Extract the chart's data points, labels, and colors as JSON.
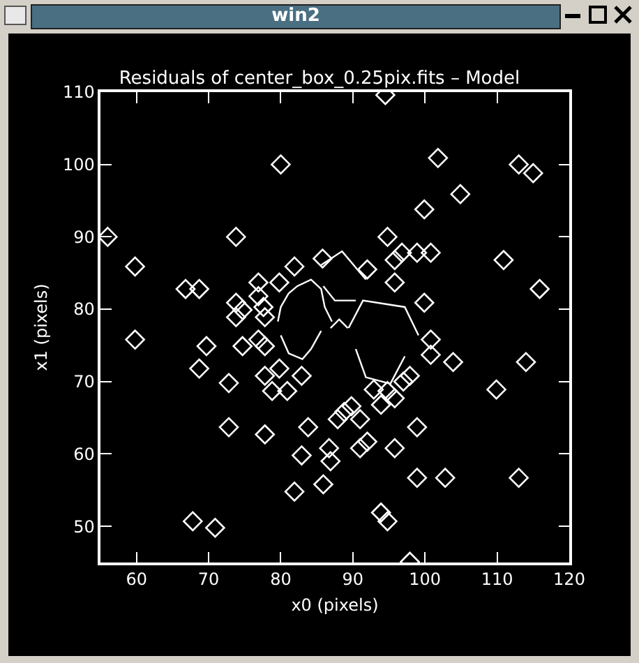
{
  "chart_data": {
    "type": "scatter",
    "title": "Residuals of center_box_0.25pix.fits – Model",
    "xlabel": "x0 (pixels)",
    "ylabel": "x1 (pixels)",
    "annotations": [
      "win2"
    ],
    "xlim": [
      55,
      120
    ],
    "ylim": [
      45,
      110
    ],
    "xticks": [
      60,
      70,
      80,
      90,
      100,
      110,
      120
    ],
    "yticks": [
      50,
      60,
      70,
      80,
      90,
      100,
      110
    ],
    "grid": false,
    "series": [
      {
        "type": "scatter",
        "marker": "diamond",
        "color": "#ffffff",
        "x": [
          94.5,
          80,
          101.8,
          113,
          115,
          104.9,
          99.9,
          56,
          73.8,
          59.8,
          66.8,
          68.7,
          85.8,
          81.9,
          76.9,
          79.8,
          76.9,
          77.6,
          73.8,
          74.7,
          73.8,
          77.8,
          94.8,
          96.8,
          95.8,
          98.9,
          100.8,
          110.9,
          115.9,
          99.9,
          95.8,
          92,
          59.8,
          69.7,
          68.7,
          74.7,
          76.9,
          77.8,
          72.8,
          77.8,
          78.8,
          80.9,
          79.8,
          82.9,
          72.8,
          77.8,
          83.8,
          82.9,
          85.9,
          81.9,
          67.8,
          70.9,
          86.7,
          86.9,
          100.8,
          100.8,
          103.9,
          114,
          109.9,
          98.9,
          95.8,
          92,
          91,
          91,
          98.9,
          102.8,
          113,
          93.9,
          94.8,
          97.9,
          93.9,
          95.8,
          94.8,
          97.9,
          97,
          92.9,
          87.9,
          88.8,
          89.8
        ],
        "values": [
          109.6,
          100,
          100.9,
          100,
          98.8,
          95.9,
          93.8,
          90,
          90,
          85.9,
          82.8,
          82.8,
          87,
          85.9,
          83.7,
          83.7,
          81.8,
          80.3,
          80.9,
          79.9,
          78.9,
          78.9,
          90,
          87.8,
          86.8,
          87.8,
          87.8,
          86.8,
          82.8,
          80.9,
          83.7,
          85.5,
          75.8,
          74.9,
          71.8,
          74.9,
          75.8,
          74.9,
          69.8,
          70.8,
          68.7,
          68.7,
          71.8,
          70.8,
          63.7,
          62.7,
          63.7,
          59.8,
          55.8,
          54.8,
          50.7,
          49.8,
          60.8,
          59,
          75.8,
          73.7,
          72.7,
          72.7,
          68.9,
          63.7,
          60.8,
          61.7,
          60.8,
          64.8,
          56.7,
          56.7,
          56.7,
          51.9,
          50.7,
          45.1,
          66.8,
          67.7,
          68.7,
          70.8,
          70,
          68.9,
          64.8,
          65.8,
          66.6
        ]
      },
      {
        "type": "line",
        "marker": "none",
        "color": "#ffffff",
        "x": [
          79.6,
          80,
          81.1,
          82.3,
          84.2,
          85.6,
          86.1,
          87.1
        ],
        "values": [
          78.3,
          80.3,
          82.2,
          83.2,
          84.1,
          82.8,
          80.3,
          78.3
        ]
      },
      {
        "type": "line",
        "marker": "none",
        "color": "#ffffff",
        "x": [
          80,
          81.1,
          83,
          84.2,
          85.6
        ],
        "values": [
          76.4,
          73.9,
          73.1,
          74.5,
          77
        ]
      },
      {
        "type": "line",
        "marker": "none",
        "color": "#ffffff",
        "x": [
          89.4,
          91.4,
          97.2,
          99.1
        ],
        "values": [
          77.4,
          81.2,
          80.3,
          76.4
        ]
      },
      {
        "type": "line",
        "marker": "none",
        "color": "#ffffff",
        "x": [
          90.4,
          91.8,
          95.2,
          97.2
        ],
        "values": [
          74.5,
          70.6,
          69.7,
          73.5
        ]
      },
      {
        "type": "line",
        "marker": "none",
        "color": "#ffffff",
        "x": [
          85.6,
          88.5,
          91.8
        ],
        "values": [
          86.1,
          88,
          84.1
        ]
      },
      {
        "type": "line",
        "marker": "none",
        "color": "#ffffff",
        "x": [
          85.9,
          87.5,
          90.4
        ],
        "values": [
          83.2,
          81.2,
          81.2
        ]
      },
      {
        "type": "line",
        "marker": "none",
        "color": "#ffffff",
        "x": [
          86.9,
          88.1,
          89.3
        ],
        "values": [
          77.4,
          78.6,
          77.4
        ]
      }
    ]
  }
}
